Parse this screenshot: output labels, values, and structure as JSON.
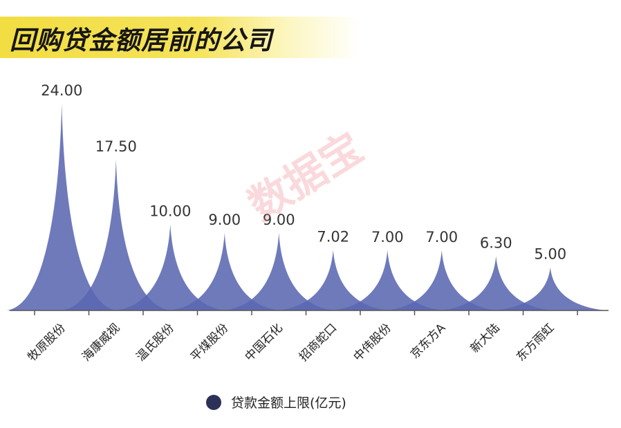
{
  "header": {
    "title": "回购贷金额居前的公司"
  },
  "watermark": {
    "text": "数据宝"
  },
  "chart_data": {
    "type": "area",
    "title": "回购贷金额居前的公司",
    "categories": [
      "牧原股份",
      "海康威视",
      "温氏股份",
      "平煤股份",
      "中国石化",
      "招商蛇口",
      "中伟股份",
      "京东方A",
      "新大陆",
      "东方雨虹"
    ],
    "series": [
      {
        "name": "贷款金额上限(亿元)",
        "values": [
          24.0,
          17.5,
          10.0,
          9.0,
          9.0,
          7.02,
          7.0,
          7.0,
          6.3,
          5.0
        ]
      }
    ],
    "value_labels": [
      "24.00",
      "17.50",
      "10.00",
      "9.00",
      "9.00",
      "7.02",
      "7.00",
      "7.00",
      "6.30",
      "5.00"
    ],
    "ylim": [
      0,
      24
    ],
    "grid": false,
    "legend_position": "bottom",
    "colors": {
      "fill": "#5b68b2",
      "legend": "#2c3257"
    }
  }
}
